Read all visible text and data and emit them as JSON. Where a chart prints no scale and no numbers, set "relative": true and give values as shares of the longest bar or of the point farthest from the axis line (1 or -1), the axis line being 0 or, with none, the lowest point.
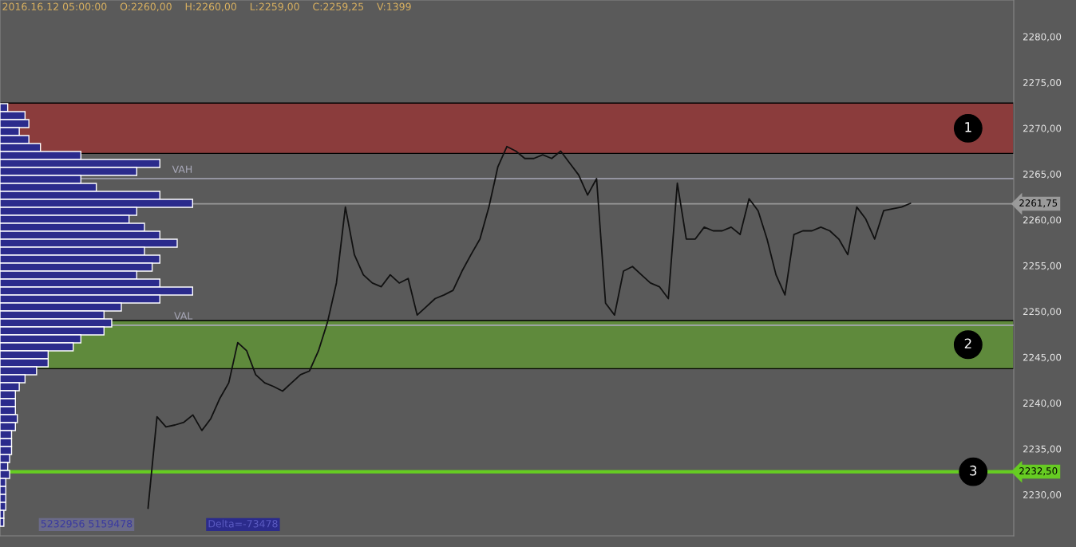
{
  "chart_data": [
    {
      "type": "line",
      "tick_labels": "y",
      "grid": false,
      "marker": "none",
      "line_style": "solid",
      "categories": [
        null,
        null,
        null,
        null,
        null,
        null,
        null,
        null,
        null,
        null,
        null,
        null,
        null,
        null,
        null,
        null,
        null,
        null,
        null,
        null,
        null,
        null,
        null,
        null,
        null,
        null,
        null,
        null,
        null,
        null,
        null,
        null,
        null,
        null,
        null,
        null,
        null,
        null,
        null,
        null,
        null,
        null,
        null,
        null,
        null,
        null,
        null,
        null,
        null,
        null,
        null,
        null,
        null,
        null,
        null,
        null,
        null,
        null,
        null,
        null,
        null,
        null,
        null,
        null,
        null,
        null,
        null,
        null,
        null,
        null,
        null,
        null,
        null,
        null,
        null,
        null,
        null,
        null,
        null,
        null,
        null,
        null,
        null,
        null,
        null,
        null,
        null,
        null,
        null,
        null,
        null,
        null,
        null,
        null,
        null,
        null,
        null,
        null,
        null,
        null,
        null,
        null,
        null,
        null,
        null,
        null,
        null,
        null,
        null,
        null,
        null,
        null,
        null
      ],
      "series": [
        {
          "color": "#111111",
          "values": [
            null,
            null,
            null,
            null,
            null,
            null,
            null,
            null,
            null,
            null,
            null,
            null,
            null,
            null,
            null,
            null,
            2228.5,
            2238.5,
            2237.4,
            2237.6,
            2237.9,
            2238.7,
            2237.0,
            2238.3,
            2240.5,
            2242.2,
            2246.6,
            2245.7,
            2243.1,
            2242.2,
            2241.8,
            2241.3,
            2242.2,
            2243.1,
            2243.5,
            2245.7,
            2248.8,
            2253.1,
            2261.4,
            2256.2,
            2254.0,
            2253.1,
            2252.7,
            2254.0,
            2253.1,
            2253.6,
            2249.6,
            2250.5,
            2251.4,
            2251.8,
            2252.3,
            2254.4,
            2256.2,
            2257.9,
            2261.4,
            2265.8,
            2268.0,
            2267.5,
            2266.7,
            2266.7,
            2267.1,
            2266.7,
            2267.5,
            2266.2,
            2264.9,
            2262.7,
            2264.5,
            2250.9,
            2249.6,
            2254.4,
            2254.9,
            2254.0,
            2253.1,
            2252.7,
            2251.4,
            2264.0,
            2257.9,
            2257.9,
            2259.2,
            2258.8,
            2258.8,
            2259.2,
            2258.4,
            2262.3,
            2261.0,
            2257.9,
            2254.0,
            2251.8,
            2258.4,
            2258.8,
            2258.8,
            2259.2,
            2258.8,
            2257.9,
            2256.2,
            2261.4,
            2260.1,
            2257.9,
            2261.0,
            2261.2,
            2261.4,
            2261.8,
            null,
            null,
            null,
            null,
            null,
            null,
            null,
            null,
            null,
            null,
            null
          ]
        }
      ],
      "ylim": [
        2225.5,
        2284
      ],
      "yticks": [
        {
          "value": 2230,
          "label": "2230,00"
        },
        {
          "value": 2235,
          "label": "2235,00"
        },
        {
          "value": 2240,
          "label": "2240,00"
        },
        {
          "value": 2245,
          "label": "2245,00"
        },
        {
          "value": 2250,
          "label": "2250,00"
        },
        {
          "value": 2255,
          "label": "2255,00"
        },
        {
          "value": 2260,
          "label": "2260,00"
        },
        {
          "value": 2265,
          "label": "2265,00"
        },
        {
          "value": 2270,
          "label": "2270,00"
        },
        {
          "value": 2275,
          "label": "2275,00"
        },
        {
          "value": 2280,
          "label": "2280,00"
        }
      ],
      "bands": [
        {
          "axis": "y",
          "from": 2267.25,
          "to": 2272.75,
          "label": "1",
          "color": "#8b3c3c"
        },
        {
          "axis": "y",
          "from": 2243.75,
          "to": 2249,
          "label": "2",
          "color": "#5f8a3c"
        }
      ],
      "ref_lines": [
        {
          "axis": "y",
          "value": 2232.5,
          "label": "2232,50",
          "color": "#66cc22",
          "line_style": "solid"
        },
        {
          "axis": "y",
          "value": 2261.75,
          "label": "2261,75",
          "color": "#9a9a9a",
          "line_style": "solid"
        },
        {
          "axis": "y",
          "value": 2264.5,
          "label": "VAH",
          "color": "#a8a8b8",
          "line_style": "solid"
        },
        {
          "axis": "y",
          "value": 2248.5,
          "label": "VAL",
          "color": "#a8a8b8",
          "line_style": "solid"
        }
      ],
      "annotations": [
        {
          "text": "3",
          "y": 2232.5
        },
        "2016.16.12 05:00:00    O:2260,00    H:2260,00    L:2259,00    C:2259,25    V:1399",
        "5232956 5159478",
        "Delta=-73478"
      ]
    },
    {
      "type": "bar",
      "orientation": "horizontal",
      "relative": true,
      "color": "#2b2b8c",
      "categories": [
        null,
        null,
        null,
        null,
        null,
        null,
        null,
        null,
        null,
        null,
        null,
        null,
        null,
        null,
        null,
        null,
        null,
        null,
        null,
        null,
        null,
        null,
        null,
        null,
        null,
        null,
        null,
        null,
        null,
        null,
        null,
        null,
        null,
        null,
        null,
        null,
        null,
        null,
        null,
        null,
        null,
        null,
        null,
        null,
        null,
        null,
        null,
        null,
        null,
        null,
        null,
        null,
        null
      ],
      "values": [
        0.04,
        0.13,
        0.15,
        0.1,
        0.15,
        0.21,
        0.42,
        0.83,
        0.71,
        0.42,
        0.5,
        0.83,
        1,
        0.71,
        0.67,
        0.75,
        0.83,
        0.92,
        0.75,
        0.83,
        0.79,
        0.71,
        0.83,
        1,
        0.83,
        0.63,
        0.54,
        0.58,
        0.54,
        0.42,
        0.38,
        0.25,
        0.25,
        0.19,
        0.13,
        0.1,
        0.08,
        0.08,
        0.08,
        0.09,
        0.08,
        0.06,
        0.06,
        0.06,
        0.05,
        0.04,
        0.05,
        0.03,
        0.03,
        0.03,
        0.03,
        0.02,
        0.02
      ]
    }
  ]
}
